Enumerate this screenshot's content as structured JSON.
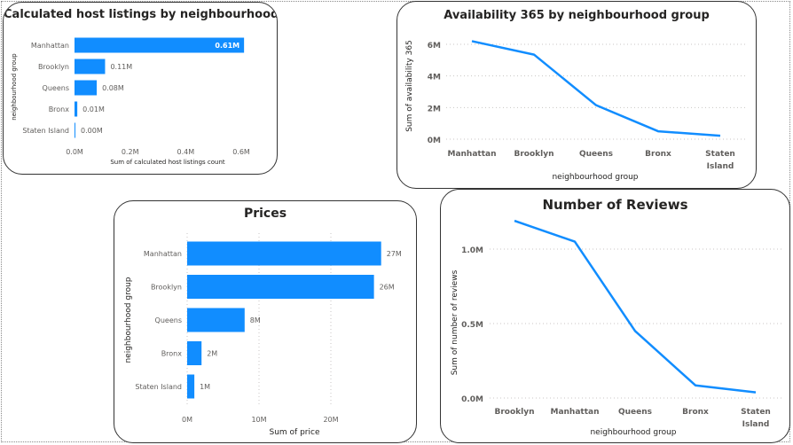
{
  "chart_data": [
    {
      "id": "c1",
      "type": "bar",
      "orientation": "horizontal",
      "title": "Calculated host listings by neighbourhood group",
      "ylabel": "neighbourhood group",
      "xlabel": "Sum of calculated host listings count",
      "categories": [
        "Manhattan",
        "Brooklyn",
        "Queens",
        "Bronx",
        "Staten Island"
      ],
      "values": [
        0.61,
        0.11,
        0.08,
        0.01,
        0.0
      ],
      "data_labels": [
        "0.61M",
        "0.11M",
        "0.08M",
        "0.01M",
        "0.00M"
      ],
      "xlim": [
        0,
        0.6
      ],
      "xticks": [
        0,
        0.2,
        0.4,
        0.6
      ],
      "xtick_labels": [
        "0.0M",
        "0.2M",
        "0.4M",
        "0.6M"
      ],
      "grid": false,
      "color": "#118DFF"
    },
    {
      "id": "c2",
      "type": "line",
      "title": "Availability 365 by neighbourhood group",
      "ylabel": "Sum of availability 365",
      "xlabel": "neighbourhood group",
      "categories": [
        "Manhattan",
        "Brooklyn",
        "Queens",
        "Bronx",
        "Staten Island"
      ],
      "values": [
        6.2,
        5.35,
        2.15,
        0.5,
        0.22
      ],
      "ylim": [
        0,
        6
      ],
      "yticks": [
        0,
        2,
        4,
        6
      ],
      "ytick_labels": [
        "0M",
        "2M",
        "4M",
        "6M"
      ],
      "grid": true,
      "color": "#118DFF"
    },
    {
      "id": "c3",
      "type": "bar",
      "orientation": "horizontal",
      "title": "Prices",
      "ylabel": "neighbourhood group",
      "xlabel": "Sum of price",
      "categories": [
        "Manhattan",
        "Brooklyn",
        "Queens",
        "Bronx",
        "Staten Island"
      ],
      "values": [
        27,
        26,
        8,
        2,
        1
      ],
      "data_labels": [
        "27M",
        "26M",
        "8M",
        "2M",
        "1M"
      ],
      "xlim": [
        0,
        20
      ],
      "xticks": [
        0,
        10,
        20
      ],
      "xtick_labels": [
        "0M",
        "10M",
        "20M"
      ],
      "grid": true,
      "color": "#118DFF"
    },
    {
      "id": "c4",
      "type": "line",
      "title": "Number of Reviews",
      "ylabel": "Sum of number of reviews",
      "xlabel": "neighbourhood group",
      "categories": [
        "Brooklyn",
        "Manhattan",
        "Queens",
        "Bronx",
        "Staten Island"
      ],
      "values": [
        1.19,
        1.05,
        0.45,
        0.085,
        0.038
      ],
      "ylim": [
        0,
        1.0
      ],
      "yticks": [
        0,
        0.5,
        1.0
      ],
      "ytick_labels": [
        "0.0M",
        "0.5M",
        "1.0M"
      ],
      "grid": true,
      "color": "#118DFF"
    }
  ]
}
